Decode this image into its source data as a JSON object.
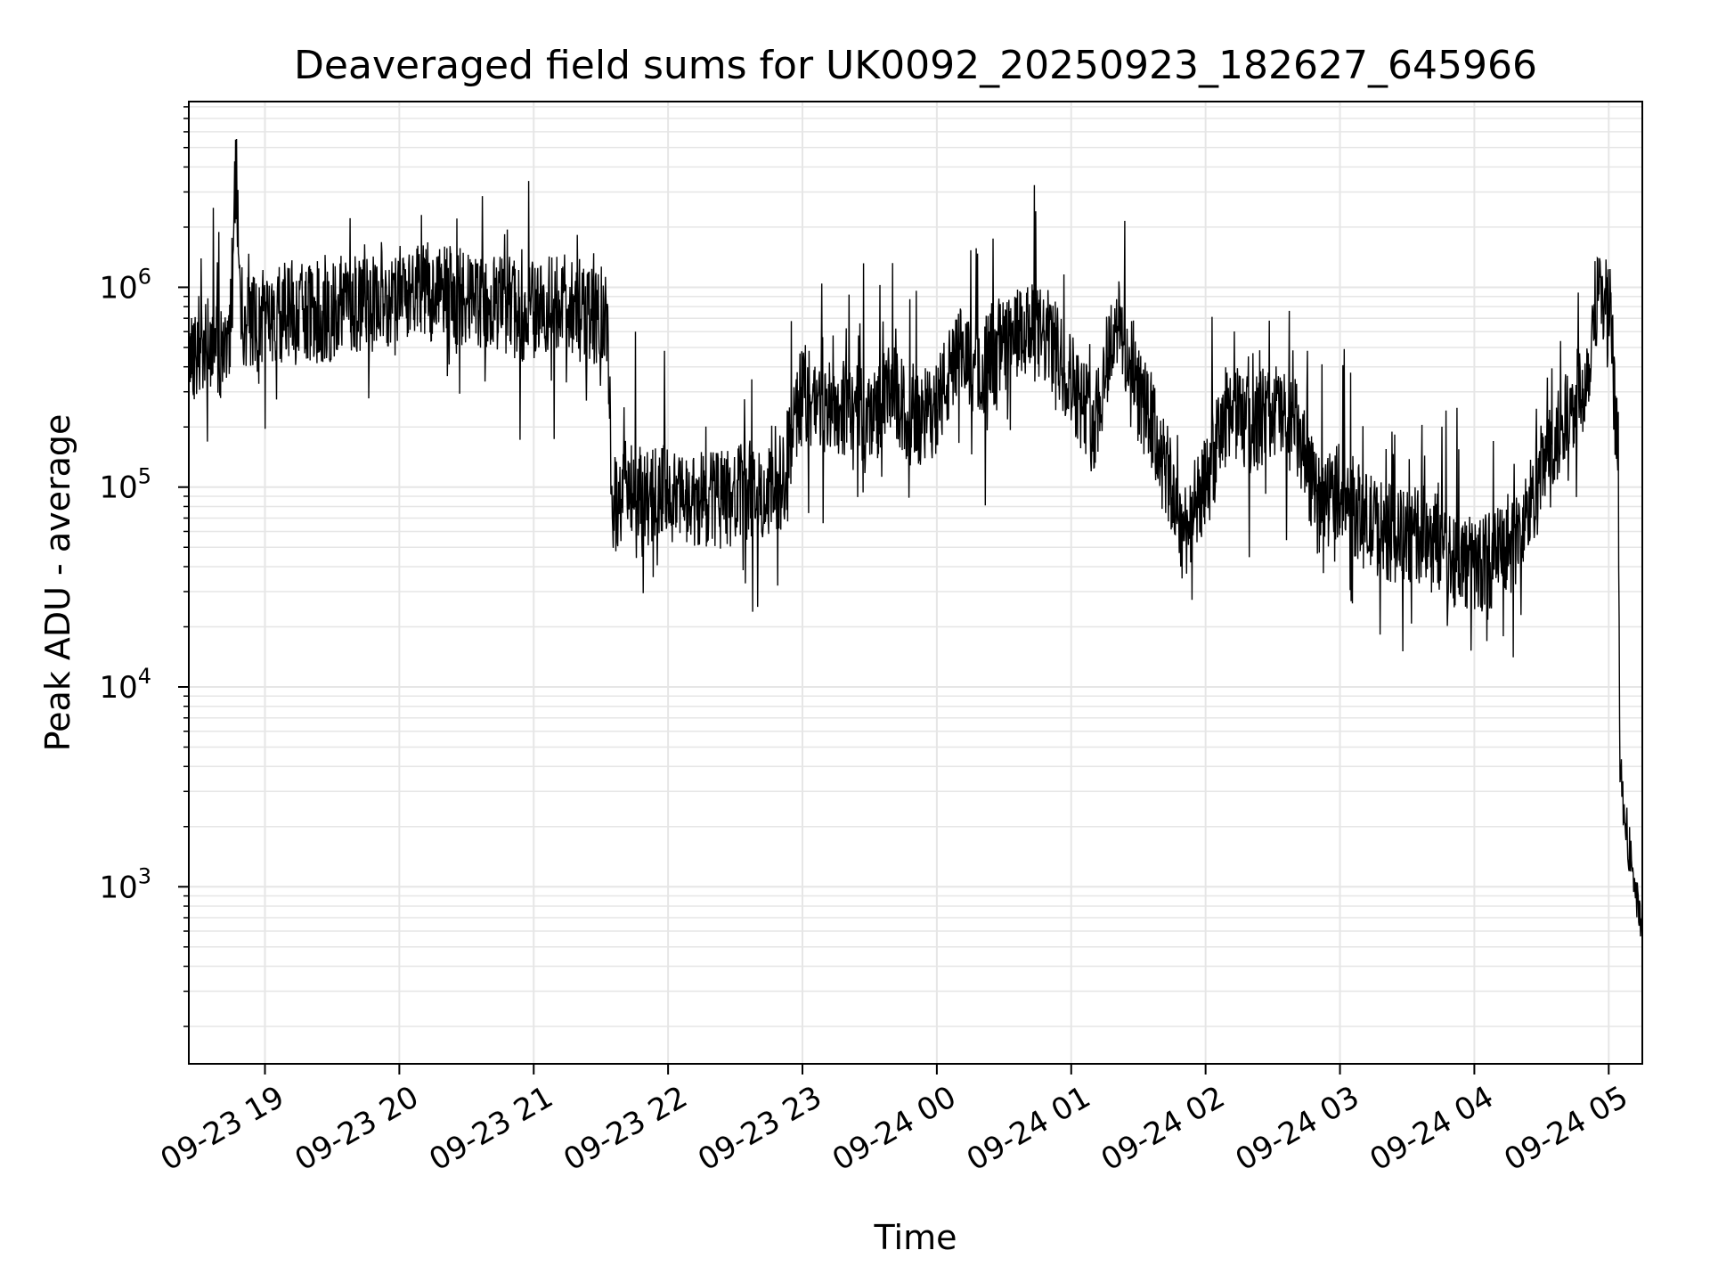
{
  "chart_data": {
    "type": "line",
    "title": "Deaveraged field sums for UK0092_20250923_182627_645966",
    "xlabel": "Time",
    "ylabel": "Peak ADU - average",
    "yscale": "log",
    "ylim": [
      130,
      8500000
    ],
    "xlim": [
      "2025-09-23 18:26",
      "2025-09-24 05:15"
    ],
    "grid": true,
    "line_color": "#000000",
    "grid_color": "#e6e6e6",
    "x_tick_labels": [
      "09-23 19",
      "09-23 20",
      "09-23 21",
      "09-23 22",
      "09-23 23",
      "09-24 00",
      "09-24 01",
      "09-24 02",
      "09-24 03",
      "09-24 04",
      "09-24 05"
    ],
    "y_tick_labels": [
      {
        "base": "10",
        "exp": "3"
      },
      {
        "base": "10",
        "exp": "4"
      },
      {
        "base": "10",
        "exp": "5"
      },
      {
        "base": "10",
        "exp": "6"
      }
    ],
    "series": [
      {
        "x": [
          "2025-09-23 18:26",
          "2025-09-23 18:32",
          "2025-09-23 18:40",
          "2025-09-23 18:45",
          "2025-09-23 18:47",
          "2025-09-23 18:50",
          "2025-09-23 18:58",
          "2025-09-23 19:05",
          "2025-09-23 19:12",
          "2025-09-23 19:20",
          "2025-09-23 19:28",
          "2025-09-23 19:35",
          "2025-09-23 19:45",
          "2025-09-23 19:55",
          "2025-09-23 20:05",
          "2025-09-23 20:15",
          "2025-09-23 20:25",
          "2025-09-23 20:35",
          "2025-09-23 20:45",
          "2025-09-23 20:55",
          "2025-09-23 21:05",
          "2025-09-23 21:15",
          "2025-09-23 21:25",
          "2025-09-23 21:33",
          "2025-09-23 21:35",
          "2025-09-23 21:42",
          "2025-09-23 21:50",
          "2025-09-23 22:00",
          "2025-09-23 22:10",
          "2025-09-23 22:20",
          "2025-09-23 22:30",
          "2025-09-23 22:40",
          "2025-09-23 22:50",
          "2025-09-23 23:00",
          "2025-09-23 23:10",
          "2025-09-23 23:20",
          "2025-09-23 23:30",
          "2025-09-23 23:40",
          "2025-09-23 23:50",
          "2025-09-23 23:59",
          "2025-09-24 00:10",
          "2025-09-24 00:20",
          "2025-09-24 00:30",
          "2025-09-24 00:40",
          "2025-09-24 00:50",
          "2025-09-24 01:00",
          "2025-09-24 01:10",
          "2025-09-24 01:20",
          "2025-09-24 01:30",
          "2025-09-24 01:40",
          "2025-09-24 01:50",
          "2025-09-24 02:00",
          "2025-09-24 02:10",
          "2025-09-24 02:20",
          "2025-09-24 02:30",
          "2025-09-24 02:40",
          "2025-09-24 02:50",
          "2025-09-24 03:00",
          "2025-09-24 03:10",
          "2025-09-24 03:20",
          "2025-09-24 03:30",
          "2025-09-24 03:40",
          "2025-09-24 03:50",
          "2025-09-24 04:00",
          "2025-09-24 04:10",
          "2025-09-24 04:20",
          "2025-09-24 04:30",
          "2025-09-24 04:40",
          "2025-09-24 04:50",
          "2025-09-24 04:55",
          "2025-09-24 05:00",
          "2025-09-24 05:02",
          "2025-09-24 05:04",
          "2025-09-24 05:05",
          "2025-09-24 05:07",
          "2025-09-24 05:09",
          "2025-09-24 05:11",
          "2025-09-24 05:13",
          "2025-09-24 05:15"
        ],
        "values": [
          450000,
          550000,
          500000,
          650000,
          4000000,
          700000,
          600000,
          700000,
          800000,
          750000,
          700000,
          850000,
          800000,
          900000,
          1000000,
          950000,
          900000,
          800000,
          850000,
          750000,
          800000,
          850000,
          700000,
          750000,
          80000,
          100000,
          90000,
          95000,
          80000,
          85000,
          90000,
          100000,
          95000,
          300000,
          250000,
          250000,
          220000,
          300000,
          200000,
          250000,
          450000,
          400000,
          500000,
          600000,
          550000,
          350000,
          200000,
          700000,
          300000,
          150000,
          60000,
          100000,
          250000,
          200000,
          250000,
          200000,
          80000,
          100000,
          70000,
          60000,
          55000,
          60000,
          45000,
          40000,
          45000,
          55000,
          120000,
          200000,
          350000,
          1000000,
          800000,
          400000,
          80000,
          5000,
          2000,
          1500,
          1200,
          800,
          600
        ]
      }
    ],
    "noise_seed": 42
  }
}
